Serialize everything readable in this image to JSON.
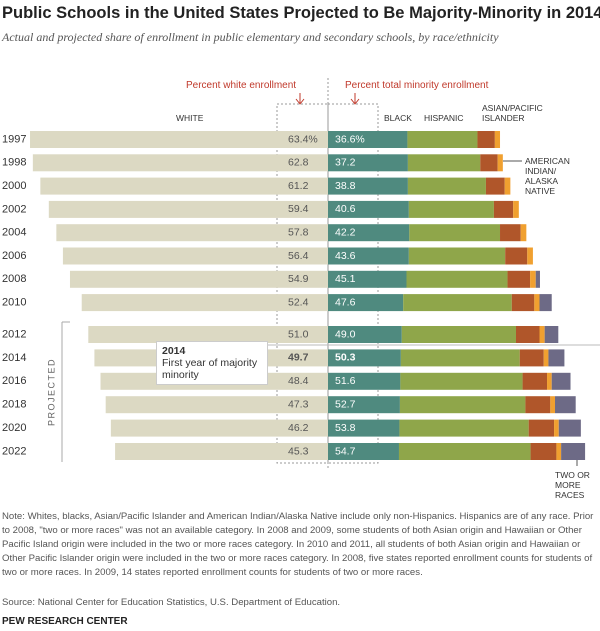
{
  "chart_data": {
    "type": "bar",
    "title": "Public Schools in the United States Projected to Be Majority-Minority in 2014",
    "subtitle": "Actual and projected share of enrollment in public elementary and secondary schools, by race/ethnicity",
    "categories": [
      "1997",
      "1998",
      "2000",
      "2002",
      "2004",
      "2006",
      "2008",
      "2010",
      "2012",
      "2014",
      "2016",
      "2018",
      "2020",
      "2022"
    ],
    "series": [
      {
        "name": "WHITE",
        "color": "#dcd9c3",
        "values": [
          63.4,
          62.8,
          61.2,
          59.4,
          57.8,
          56.4,
          54.9,
          52.4,
          51.0,
          49.7,
          48.4,
          47.3,
          46.2,
          45.3
        ],
        "value_labels": [
          "63.4%",
          "62.8",
          "61.2",
          "59.4",
          "57.8",
          "56.4",
          "54.9",
          "52.4",
          "51.0",
          "49.7",
          "48.4",
          "47.3",
          "46.2",
          "45.3"
        ]
      },
      {
        "name": "Percent total minority enrollment",
        "values": [
          36.6,
          37.2,
          38.8,
          40.6,
          42.2,
          43.6,
          45.1,
          47.6,
          49.0,
          50.3,
          51.6,
          52.7,
          53.8,
          54.7
        ],
        "value_labels": [
          "36.6%",
          "37.2",
          "38.8",
          "40.6",
          "42.2",
          "43.6",
          "45.1",
          "47.6",
          "49.0",
          "50.3",
          "51.6",
          "52.7",
          "53.8",
          "54.7"
        ]
      },
      {
        "name": "BLACK",
        "color": "#4f8a7f",
        "values": [
          16.9,
          17.0,
          17.0,
          17.2,
          17.3,
          17.2,
          16.7,
          16.0,
          15.7,
          15.5,
          15.4,
          15.3,
          15.2,
          15.1
        ]
      },
      {
        "name": "HISPANIC",
        "color": "#8fa64a",
        "values": [
          14.9,
          15.4,
          16.6,
          18.1,
          19.3,
          20.5,
          21.5,
          23.1,
          24.3,
          25.3,
          26.0,
          26.7,
          27.5,
          28.0
        ]
      },
      {
        "name": "ASIAN/PACIFIC ISLANDER",
        "color": "#b0562a",
        "values": [
          3.7,
          3.7,
          4.0,
          4.1,
          4.4,
          4.7,
          4.8,
          4.8,
          5.0,
          5.1,
          5.2,
          5.3,
          5.4,
          5.5
        ]
      },
      {
        "name": "AMERICAN INDIAN/ ALASKA NATIVE",
        "color": "#f0a030",
        "values": [
          1.1,
          1.1,
          1.2,
          1.2,
          1.2,
          1.2,
          1.2,
          1.1,
          1.1,
          1.0,
          1.0,
          1.0,
          1.0,
          1.0
        ]
      },
      {
        "name": "TWO OR MORE RACES",
        "color": "#6d6a86",
        "values": [
          null,
          null,
          null,
          null,
          null,
          null,
          0.9,
          2.6,
          2.9,
          3.4,
          4.0,
          4.4,
          4.7,
          5.1
        ]
      }
    ],
    "annotations": [
      "Percent white enrollment",
      "PROJECTED"
    ],
    "callout": {
      "title": "2014",
      "text": "First year of majority minority"
    },
    "note": "Note: Whites, blacks, Asian/Pacific Islander and American Indian/Alaska Native include only non-Hispanics. Hispanics are of any race. Prior to 2008, \"two or more races\" was not an available category. In 2008 and 2009, some students of both Asian origin and Hawaiian or Other Pacific Island origin were included in the two or more races category. In 2010 and 2011, all students of both Asian origin and Hawaiian or Other Pacific Islander origin were included in the two or more races category. In 2008, five states reported enrollment counts for students of two or more races. In 2009, 14 states reported enrollment counts for students of two or more races.",
    "source": "Source: National Center for Education Statistics, U.S. Department of Education.",
    "footer": "PEW RESEARCH CENTER"
  }
}
